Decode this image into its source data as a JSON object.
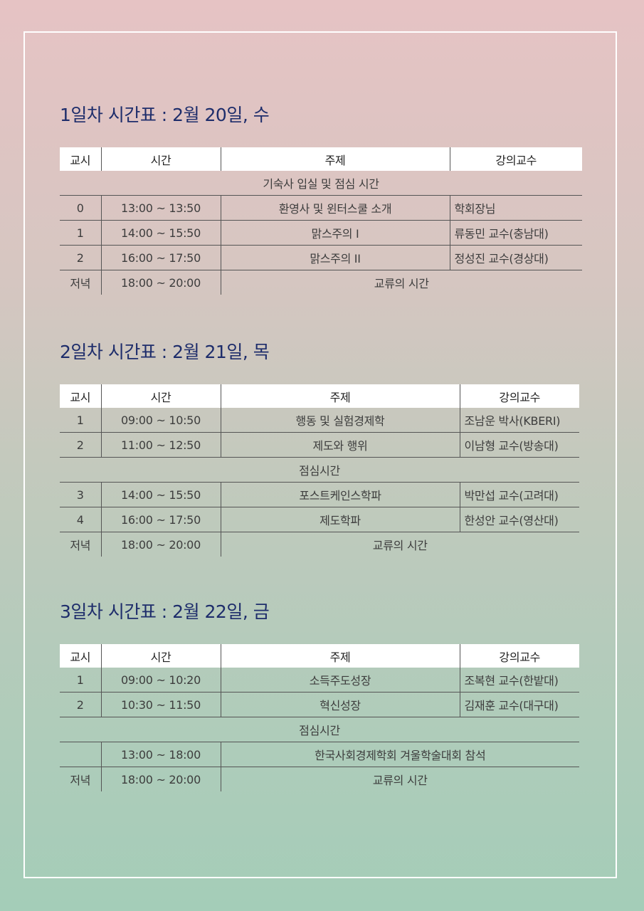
{
  "colors": {
    "title": "#1e2d6b",
    "frame": "#ffffff",
    "gradient_top": "#e6c3c4",
    "gradient_bottom": "#a4cdb8"
  },
  "days": [
    {
      "title": "1일차 시간표 : 2월 20일, 수",
      "headers": [
        "교시",
        "시간",
        "주제",
        "강의교수"
      ],
      "rows": [
        {
          "span": "기숙사 입실 및 점심 시간"
        },
        {
          "period": "0",
          "time": "13:00 ~ 13:50",
          "topic": "환영사 및 윈터스쿨 소개",
          "professor": "학회장님"
        },
        {
          "period": "1",
          "time": "14:00 ~ 15:50",
          "topic": "맑스주의 I",
          "professor": "류동민 교수(충남대)"
        },
        {
          "period": "2",
          "time": "16:00 ~ 17:50",
          "topic": "맑스주의 II",
          "professor": "정성진 교수(경상대)"
        },
        {
          "period": "저녁",
          "time": "18:00 ~ 20:00",
          "topic": "교류의 시간"
        }
      ]
    },
    {
      "title": "2일차 시간표 : 2월 21일, 목",
      "headers": [
        "교시",
        "시간",
        "주제",
        "강의교수"
      ],
      "rows": [
        {
          "period": "1",
          "time": "09:00 ~ 10:50",
          "topic": "행동 및 실험경제학",
          "professor": "조남운 박사(KBERI)"
        },
        {
          "period": "2",
          "time": "11:00 ~ 12:50",
          "topic": "제도와 행위",
          "professor": "이남형 교수(방송대)"
        },
        {
          "span": "점심시간"
        },
        {
          "period": "3",
          "time": "14:00 ~ 15:50",
          "topic": "포스트케인스학파",
          "professor": "박만섭 교수(고려대)"
        },
        {
          "period": "4",
          "time": "16:00 ~ 17:50",
          "topic": "제도학파",
          "professor": "한성안 교수(영산대)"
        },
        {
          "period": "저녁",
          "time": "18:00 ~ 20:00",
          "topic": "교류의 시간"
        }
      ]
    },
    {
      "title": "3일차 시간표 : 2월 22일, 금",
      "headers": [
        "교시",
        "시간",
        "주제",
        "강의교수"
      ],
      "rows": [
        {
          "period": "1",
          "time": "09:00 ~ 10:20",
          "topic": "소득주도성장",
          "professor": "조복현 교수(한밭대)"
        },
        {
          "period": "2",
          "time": "10:30 ~ 11:50",
          "topic": "혁신성장",
          "professor": "김재훈 교수(대구대)"
        },
        {
          "span": "점심시간"
        },
        {
          "period": "",
          "time": "13:00 ~ 18:00",
          "topic": "한국사회경제학회 겨울학술대회 참석"
        },
        {
          "period": "저녁",
          "time": "18:00 ~ 20:00",
          "topic": "교류의 시간"
        }
      ]
    }
  ]
}
